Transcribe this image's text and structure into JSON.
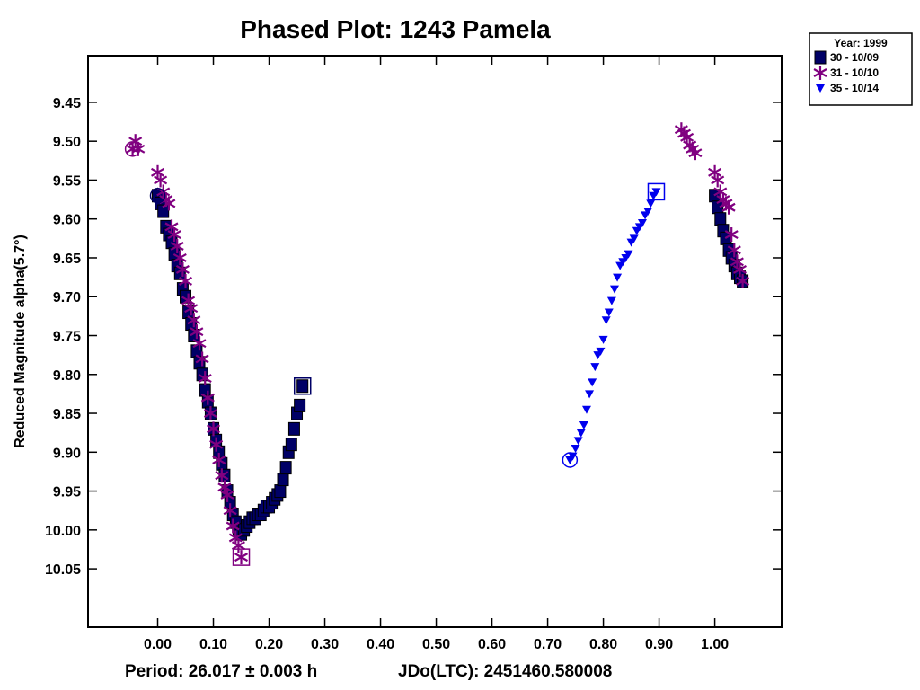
{
  "chart_data": {
    "type": "scatter",
    "title": "Phased Plot: 1243 Pamela",
    "ylabel": "Reduced Magnitude alpha(5.7°)",
    "xlabel": "",
    "x_ticks": [
      "0.00",
      "0.10",
      "0.20",
      "0.30",
      "0.40",
      "0.50",
      "0.60",
      "0.70",
      "0.80",
      "0.90",
      "1.00"
    ],
    "y_ticks": [
      "9.45",
      "9.50",
      "9.55",
      "9.60",
      "9.65",
      "9.70",
      "9.75",
      "9.80",
      "9.85",
      "9.90",
      "9.95",
      "10.00",
      "10.05"
    ],
    "xlim": [
      -0.125,
      1.12
    ],
    "ylim": [
      10.125,
      9.39
    ],
    "y_inverted": true,
    "grid": false,
    "legend_position": "top-right, outside plot",
    "footer_period": "Period: 26.017 ± 0.003 h",
    "footer_epoch": "JDo(LTC): 2451460.580008",
    "legend": {
      "title": "Year: 1999",
      "entries": [
        {
          "label": "30 - 10/09",
          "marker": "square",
          "color": "#000066"
        },
        {
          "label": "31 - 10/10",
          "marker": "asterisk",
          "color": "#800080"
        },
        {
          "label": "35 - 10/14",
          "marker": "triangle-down",
          "color": "#0000ee"
        }
      ]
    },
    "series": [
      {
        "name": "30 - 10/09",
        "marker": "square",
        "color": "#000066",
        "x": [
          0.0,
          0.005,
          0.01,
          0.015,
          0.02,
          0.025,
          0.03,
          0.035,
          0.04,
          0.045,
          0.05,
          0.055,
          0.06,
          0.065,
          0.07,
          0.075,
          0.08,
          0.085,
          0.09,
          0.095,
          0.1,
          0.105,
          0.11,
          0.115,
          0.12,
          0.125,
          0.13,
          0.135,
          0.14,
          0.145,
          0.15,
          0.155,
          0.16,
          0.165,
          0.17,
          0.175,
          0.18,
          0.185,
          0.19,
          0.195,
          0.2,
          0.205,
          0.21,
          0.215,
          0.22,
          0.225,
          0.23,
          0.235,
          0.24,
          0.245,
          0.25,
          0.255,
          0.26,
          1.0,
          1.005,
          1.01,
          1.015,
          1.02,
          1.025,
          1.03,
          1.035,
          1.04,
          1.045,
          1.05
        ],
        "y": [
          9.57,
          9.58,
          9.59,
          9.61,
          9.62,
          9.63,
          9.645,
          9.66,
          9.67,
          9.69,
          9.7,
          9.72,
          9.735,
          9.75,
          9.77,
          9.785,
          9.8,
          9.82,
          9.835,
          9.85,
          9.87,
          9.885,
          9.9,
          9.915,
          9.93,
          9.95,
          9.965,
          9.98,
          9.99,
          10.0,
          10.005,
          10.0,
          9.995,
          9.99,
          9.985,
          9.985,
          9.98,
          9.98,
          9.975,
          9.97,
          9.97,
          9.965,
          9.96,
          9.955,
          9.95,
          9.935,
          9.92,
          9.9,
          9.89,
          9.87,
          9.85,
          9.84,
          9.815,
          9.57,
          9.585,
          9.6,
          9.615,
          9.625,
          9.64,
          9.65,
          9.66,
          9.67,
          9.675,
          9.68
        ]
      },
      {
        "name": "31 - 10/10",
        "marker": "asterisk",
        "color": "#800080",
        "x": [
          -0.045,
          -0.04,
          -0.035,
          0.0,
          0.005,
          0.01,
          0.015,
          0.02,
          0.025,
          0.03,
          0.035,
          0.04,
          0.045,
          0.05,
          0.055,
          0.06,
          0.065,
          0.07,
          0.075,
          0.08,
          0.085,
          0.09,
          0.095,
          0.1,
          0.105,
          0.11,
          0.115,
          0.12,
          0.125,
          0.13,
          0.135,
          0.14,
          0.145,
          0.15,
          0.94,
          0.945,
          0.95,
          0.955,
          0.96,
          0.965,
          1.0,
          1.005,
          1.01,
          1.015,
          1.02,
          1.025,
          1.03,
          1.035,
          1.04,
          1.045,
          1.05
        ],
        "y": [
          9.51,
          9.5,
          9.51,
          9.54,
          9.55,
          9.565,
          9.575,
          9.58,
          9.61,
          9.62,
          9.635,
          9.65,
          9.665,
          9.68,
          9.705,
          9.715,
          9.73,
          9.745,
          9.76,
          9.78,
          9.805,
          9.83,
          9.85,
          9.87,
          9.89,
          9.91,
          9.93,
          9.945,
          9.955,
          9.975,
          9.995,
          10.01,
          10.02,
          10.035,
          9.485,
          9.49,
          9.495,
          9.505,
          9.51,
          9.515,
          9.54,
          9.55,
          9.565,
          9.575,
          9.58,
          9.585,
          9.62,
          9.64,
          9.655,
          9.665,
          9.68
        ]
      },
      {
        "name": "35 - 10/14",
        "marker": "triangle-down",
        "color": "#0000ee",
        "x": [
          0.74,
          0.745,
          0.75,
          0.755,
          0.76,
          0.765,
          0.77,
          0.775,
          0.78,
          0.785,
          0.79,
          0.795,
          0.8,
          0.805,
          0.81,
          0.815,
          0.82,
          0.825,
          0.83,
          0.835,
          0.84,
          0.845,
          0.85,
          0.855,
          0.86,
          0.865,
          0.87,
          0.875,
          0.88,
          0.885,
          0.89,
          0.895
        ],
        "y": [
          9.91,
          9.905,
          9.895,
          9.885,
          9.875,
          9.865,
          9.845,
          9.825,
          9.81,
          9.79,
          9.775,
          9.77,
          9.755,
          9.73,
          9.72,
          9.705,
          9.69,
          9.675,
          9.66,
          9.655,
          9.65,
          9.645,
          9.63,
          9.625,
          9.615,
          9.61,
          9.605,
          9.595,
          9.59,
          9.58,
          9.57,
          9.565
        ]
      }
    ]
  }
}
